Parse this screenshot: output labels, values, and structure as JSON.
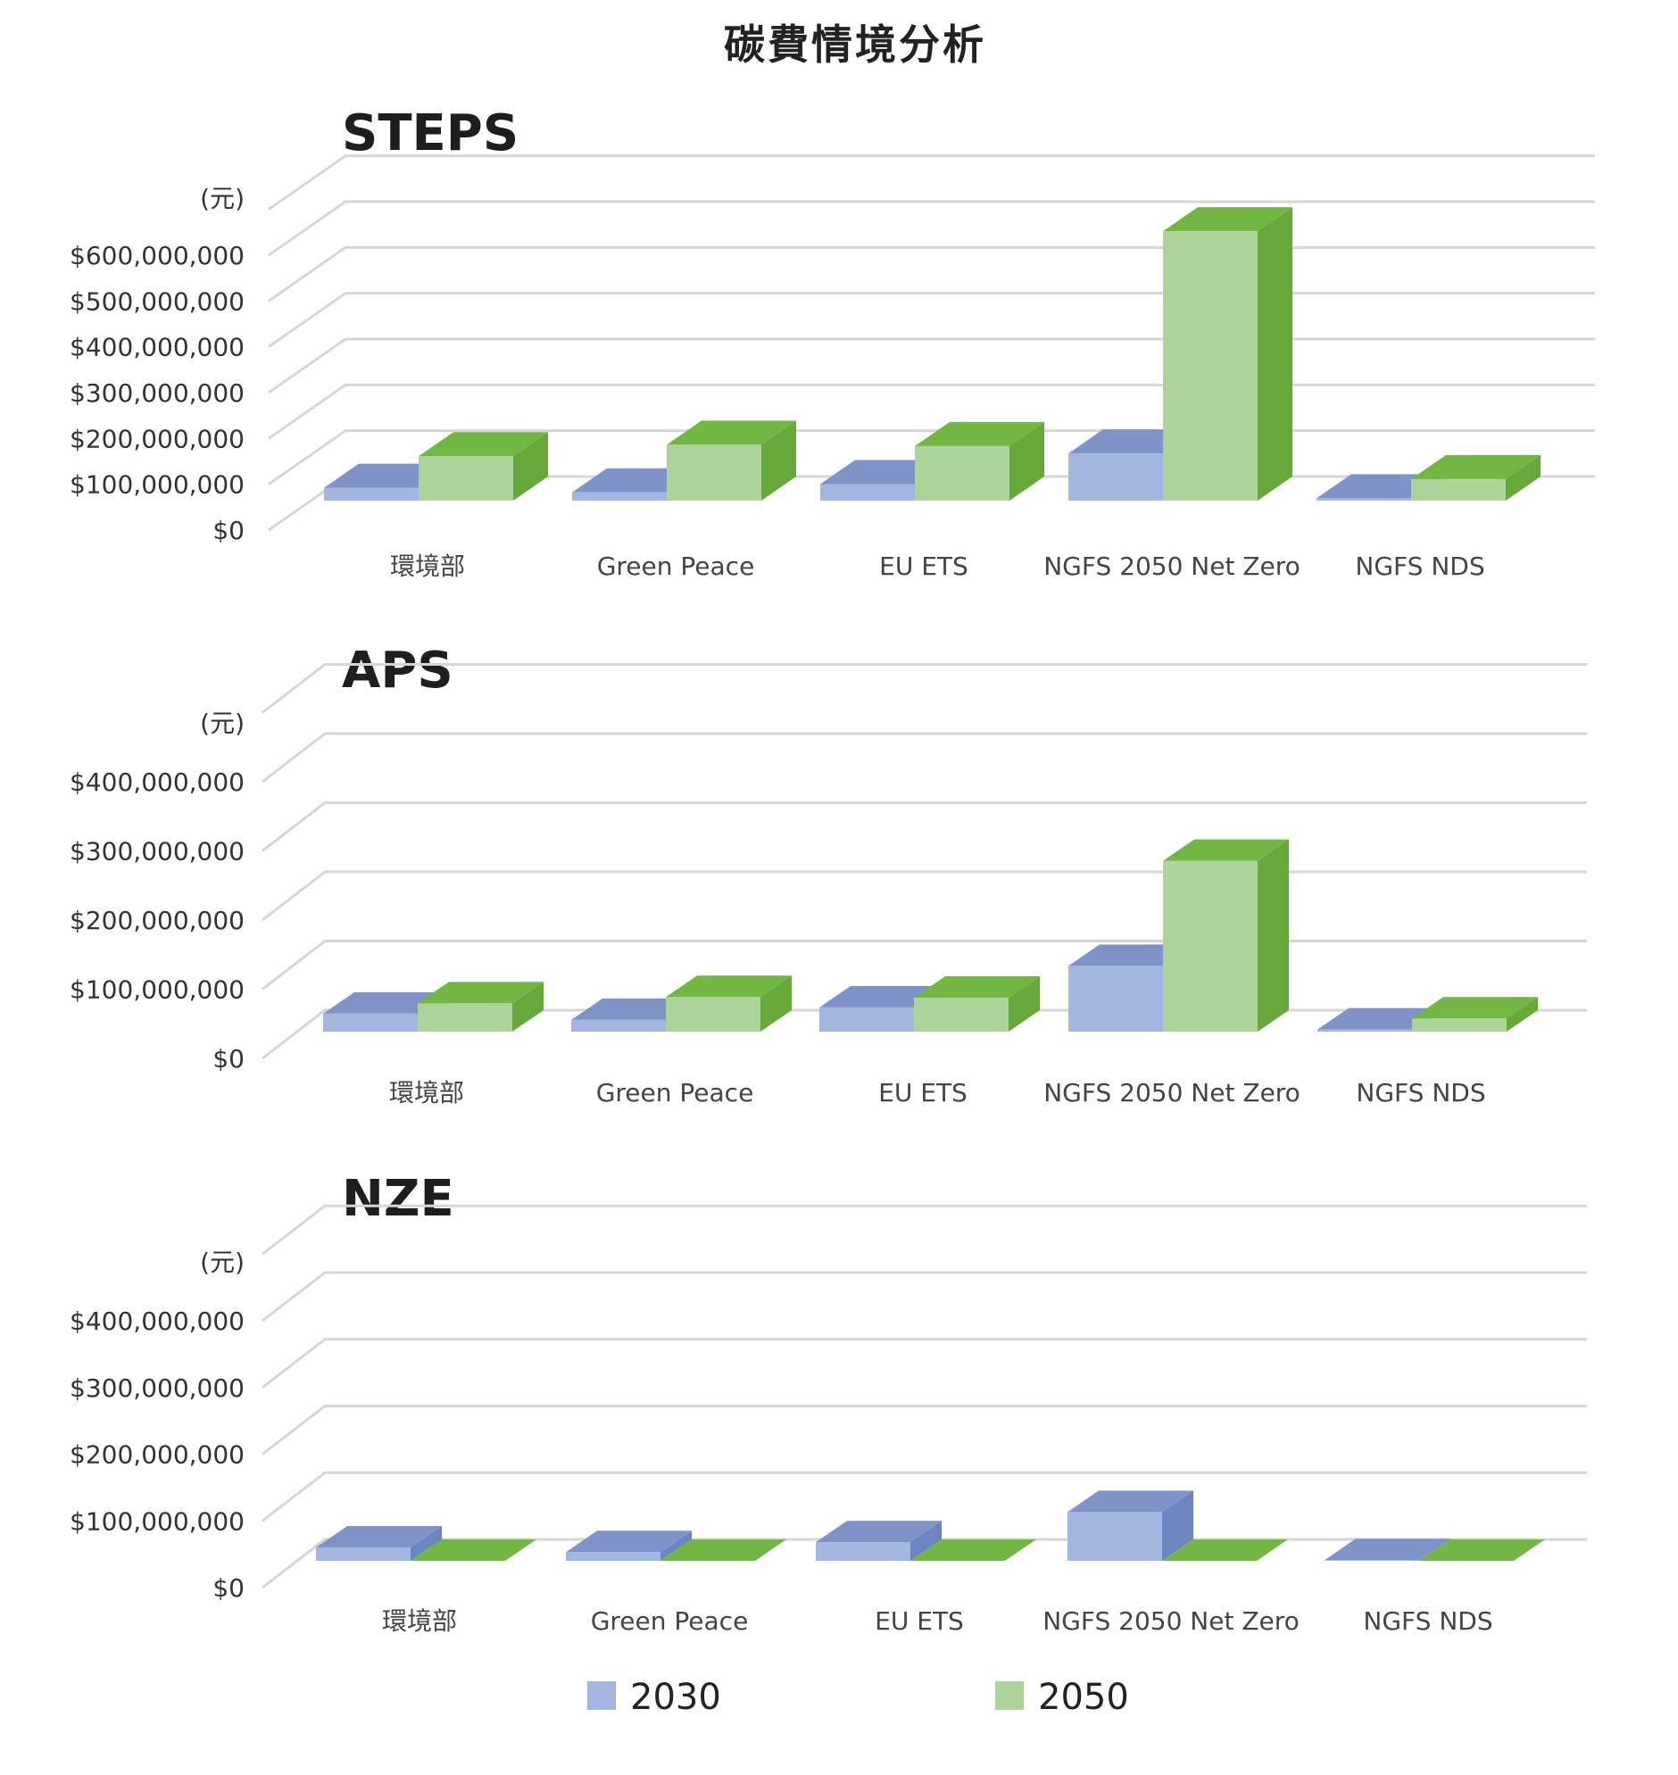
{
  "title": "碳費情境分析",
  "colors": {
    "s2030_front": "#a3b6e0",
    "s2030_top": "#7f93c9",
    "s2030_side": "#6e84c0",
    "s2050_front": "#acd49a",
    "s2050_top": "#72b643",
    "s2050_side": "#66a93a"
  },
  "legend": [
    {
      "label": "2030",
      "color": "#a3b6e0"
    },
    {
      "label": "2050",
      "color": "#acd49a"
    }
  ],
  "chart_data": [
    {
      "type": "bar",
      "title": "STEPS",
      "ylabel": "(元)",
      "ylim": [
        0,
        600000000
      ],
      "yticks": [
        "$0",
        "$100,000,000",
        "$200,000,000",
        "$300,000,000",
        "$400,000,000",
        "$500,000,000",
        "$600,000,000"
      ],
      "categories": [
        "環境部",
        "Green Peace",
        "EU ETS",
        "NGFS 2050 Net Zero",
        "NGFS NDS"
      ],
      "series": [
        {
          "name": "2030",
          "values": [
            28000000,
            18000000,
            36000000,
            103000000,
            5000000
          ]
        },
        {
          "name": "2050",
          "values": [
            97000000,
            122000000,
            119000000,
            588000000,
            47000000
          ]
        }
      ]
    },
    {
      "type": "bar",
      "title": "APS",
      "ylabel": "(元)",
      "ylim": [
        0,
        400000000
      ],
      "yticks": [
        "$0",
        "$100,000,000",
        "$200,000,000",
        "$300,000,000",
        "$400,000,000"
      ],
      "categories": [
        "環境部",
        "Green Peace",
        "EU ETS",
        "NGFS 2050 Net Zero",
        "NGFS NDS"
      ],
      "series": [
        {
          "name": "2030",
          "values": [
            26000000,
            17000000,
            35000000,
            95000000,
            3000000
          ]
        },
        {
          "name": "2050",
          "values": [
            41000000,
            50000000,
            49000000,
            247000000,
            19000000
          ]
        }
      ]
    },
    {
      "type": "bar",
      "title": "NZE",
      "ylabel": "(元)",
      "ylim": [
        0,
        400000000
      ],
      "yticks": [
        "$0",
        "$100,000,000",
        "$200,000,000",
        "$300,000,000",
        "$400,000,000"
      ],
      "categories": [
        "環境部",
        "Green Peace",
        "EU ETS",
        "NGFS 2050 Net Zero",
        "NGFS NDS"
      ],
      "series": [
        {
          "name": "2030",
          "values": [
            20000000,
            13000000,
            28000000,
            73000000,
            1000000
          ]
        },
        {
          "name": "2050",
          "values": [
            0,
            0,
            0,
            0,
            0
          ]
        }
      ]
    }
  ]
}
